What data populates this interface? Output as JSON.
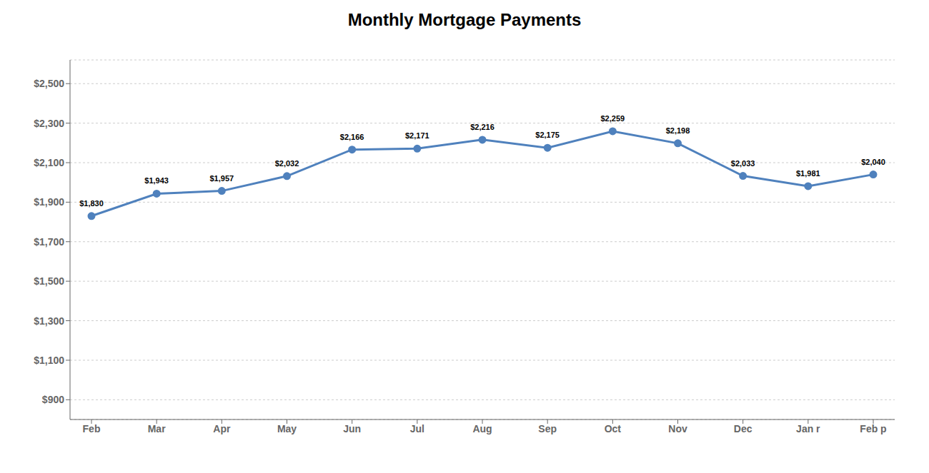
{
  "chart_data": {
    "type": "line",
    "title": "Monthly Mortgage Payments",
    "categories": [
      "Feb",
      "Mar",
      "Apr",
      "May",
      "Jun",
      "Jul",
      "Aug",
      "Sep",
      "Oct",
      "Nov",
      "Dec",
      "Jan r",
      "Feb p"
    ],
    "values": [
      1830,
      1943,
      1957,
      2032,
      2166,
      2171,
      2216,
      2175,
      2259,
      2198,
      2033,
      1981,
      2040
    ],
    "value_labels": [
      "$1,830",
      "$1,943",
      "$1,957",
      "$2,032",
      "$2,166",
      "$2,171",
      "$2,216",
      "$2,175",
      "$2,259",
      "$2,198",
      "$2,033",
      "$1,981",
      "$2,040"
    ],
    "color": "#4f81bd",
    "marker": "circle",
    "ylim": [
      800,
      2620
    ],
    "yticks": [
      {
        "value": 900,
        "label": "$900"
      },
      {
        "value": 1100,
        "label": "$1,100"
      },
      {
        "value": 1300,
        "label": "$1,300"
      },
      {
        "value": 1500,
        "label": "$1,500"
      },
      {
        "value": 1700,
        "label": "$1,700"
      },
      {
        "value": 1900,
        "label": "$1,900"
      },
      {
        "value": 2100,
        "label": "$2,100"
      },
      {
        "value": 2300,
        "label": "$2,300"
      },
      {
        "value": 2500,
        "label": "$2,500"
      }
    ],
    "grid": true,
    "data_labels": true
  }
}
